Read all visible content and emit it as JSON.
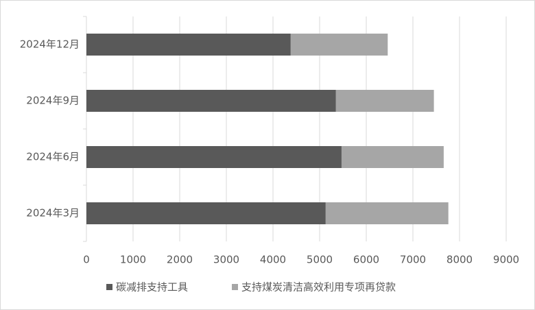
{
  "chart_data": {
    "type": "stacked-barh",
    "categories": [
      "2024年3月",
      "2024年6月",
      "2024年9月",
      "2024年12月"
    ],
    "series": [
      {
        "name": "碳减排支持工具",
        "color": "#595959",
        "values": [
          5130,
          5470,
          5350,
          4380
        ]
      },
      {
        "name": "支持煤炭清洁高效利用专项再贷款",
        "color": "#a6a6a6",
        "values": [
          2630,
          2190,
          2100,
          2080
        ]
      }
    ],
    "xlim": [
      0,
      9000
    ],
    "xticks": [
      0,
      1000,
      2000,
      3000,
      4000,
      5000,
      6000,
      7000,
      8000,
      9000
    ],
    "grid": true,
    "legend": "bottom"
  }
}
